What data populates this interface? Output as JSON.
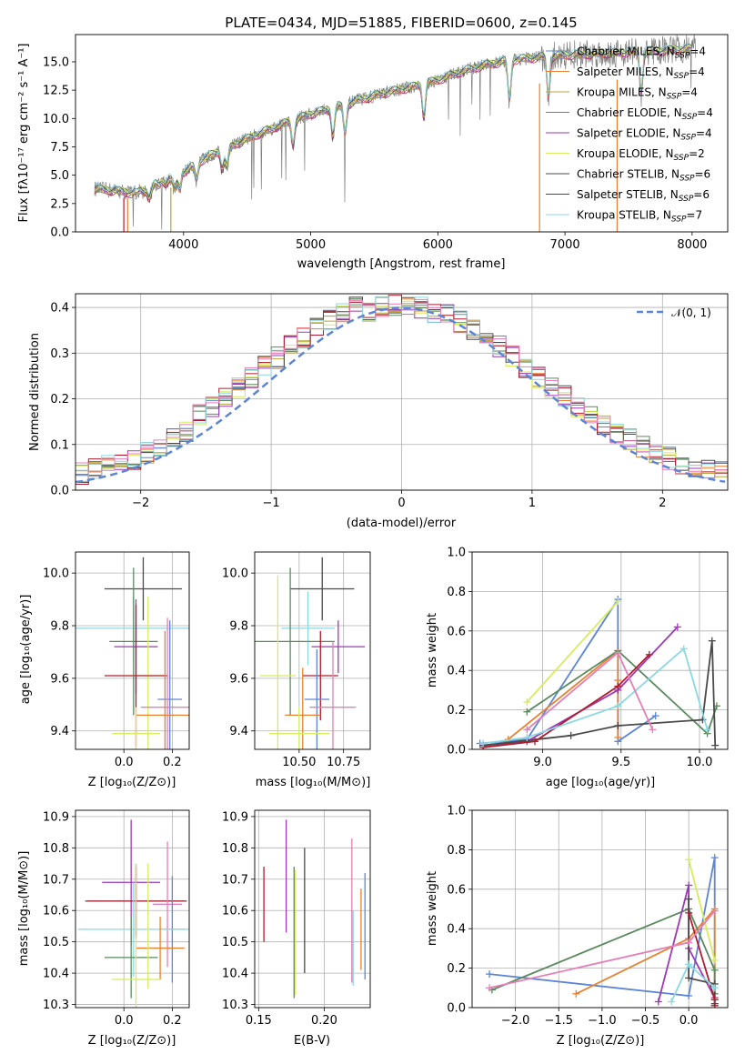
{
  "figure": {
    "colors": {
      "chabrier_miles": "#5d85d6",
      "salpeter_miles": "#e8812f",
      "kroupa_miles": "#b8a43a",
      "chabrier_elodie": "#5a8a5e",
      "salpeter_elodie": "#9e38b6",
      "kroupa_elodie": "#d6ec5c",
      "chabrier_stelib": "#4a4a4a",
      "salpeter_stelib": "#b01c2e",
      "kroupa_stelib": "#8bd9e0",
      "pink": "#e57fb6"
    }
  },
  "chart_data": [
    {
      "id": "spectrum",
      "type": "line",
      "title": "PLATE=0434, MJD=51885, FIBERID=0600, z=0.145",
      "xlabel": "wavelength [Angstrom, rest frame]",
      "ylabel": "Flux [fλ10⁻¹⁷ erg cm⁻² s⁻¹ A⁻¹]",
      "xlim": [
        3150,
        8280
      ],
      "ylim": [
        0,
        17.4
      ],
      "xticks": [
        4000,
        5000,
        6000,
        7000,
        8000
      ],
      "yticks": [
        0.0,
        2.5,
        5.0,
        7.5,
        10.0,
        12.5,
        15.0
      ],
      "grid": false,
      "legend_position": "top-right",
      "legend": [
        {
          "label": "Chabrier MILES, N",
          "sub": "SSP",
          "tail": "=4",
          "color": "#5d85d6"
        },
        {
          "label": "Salpeter MILES, N",
          "sub": "SSP",
          "tail": "=4",
          "color": "#e8812f"
        },
        {
          "label": "Kroupa MILES, N",
          "sub": "SSP",
          "tail": "=4",
          "color": "#b8a43a"
        },
        {
          "label": "Chabrier ELODIE, N",
          "sub": "SSP",
          "tail": "=4",
          "color": "#5a8a5e"
        },
        {
          "label": "Salpeter ELODIE, N",
          "sub": "SSP",
          "tail": "=4",
          "color": "#9e38b6"
        },
        {
          "label": "Kroupa ELODIE, N",
          "sub": "SSP",
          "tail": "=2",
          "color": "#d6ec5c"
        },
        {
          "label": "Chabrier STELIB, N",
          "sub": "SSP",
          "tail": "=6",
          "color": "#4a4a4a"
        },
        {
          "label": "Salpeter STELIB, N",
          "sub": "SSP",
          "tail": "=6",
          "color": "#b01c2e"
        },
        {
          "label": "Kroupa STELIB, N",
          "sub": "SSP",
          "tail": "=7",
          "color": "#8bd9e0"
        }
      ],
      "continuum": {
        "x": [
          3300,
          3400,
          3500,
          3600,
          3700,
          3800,
          3900,
          4000,
          4100,
          4200,
          4400,
          4600,
          4800,
          5000,
          5200,
          5400,
          5600,
          5800,
          6000,
          6200,
          6400,
          6600,
          6800,
          7000,
          7200,
          7400,
          7600,
          7800,
          8000
        ],
        "y": [
          3.8,
          3.7,
          3.6,
          3.4,
          3.7,
          4.2,
          4.6,
          5.3,
          6.0,
          6.7,
          7.7,
          8.7,
          9.6,
          10.4,
          11.0,
          11.7,
          12.3,
          12.8,
          13.4,
          14.2,
          14.8,
          15.2,
          15.4,
          15.6,
          15.7,
          15.8,
          15.9,
          16.0,
          16.2
        ]
      },
      "model_drop_x": [
        3530,
        3560,
        3900,
        6800,
        7410
      ]
    },
    {
      "id": "residuals",
      "type": "line",
      "xlabel": "(data-model)/error",
      "ylabel": "Normed distribution",
      "xlim": [
        -2.5,
        2.5
      ],
      "ylim": [
        0,
        0.43
      ],
      "xticks": [
        -2,
        -1,
        0,
        1,
        2
      ],
      "yticks": [
        0.0,
        0.1,
        0.2,
        0.3,
        0.4
      ],
      "grid": true,
      "legend_position": "top-right",
      "legend": [
        {
          "label": "𝒩(0, 1)",
          "color": "#5d85d6",
          "dashed": true
        }
      ],
      "gaussian": {
        "mu": 0,
        "sigma": 1
      },
      "histogram_bin_width": 0.1
    },
    {
      "id": "age-vs-z",
      "type": "scatter",
      "xlabel": "Z [log₁₀(Z/Z⊙)]",
      "ylabel": "age  [log₁₀(age/yr)]",
      "xlim": [
        -0.2,
        0.27
      ],
      "ylim": [
        9.33,
        10.08
      ],
      "xticks": [
        0.0,
        0.2
      ],
      "yticks": [
        9.4,
        9.6,
        9.8,
        10.0
      ],
      "grid": true,
      "points": [
        {
          "x": 0.08,
          "xerr": 0.16,
          "y": 9.94,
          "yerr": 0.12,
          "color": "#4a4a4a"
        },
        {
          "x": 0.04,
          "xerr": 0.28,
          "y": 9.79,
          "yerr": 0.12,
          "color": "#8bd9e0"
        },
        {
          "x": 0.04,
          "xerr": 0.1,
          "y": 9.74,
          "yerr": 0.28,
          "color": "#5a8a5e"
        },
        {
          "x": 0.05,
          "xerr": 0.09,
          "y": 9.72,
          "yerr": 0.18,
          "color": "#9e38b6"
        },
        {
          "x": 0.1,
          "xerr": 0.09,
          "y": 9.61,
          "yerr": 0.3,
          "color": "#d6ec5c"
        },
        {
          "x": 0.05,
          "xerr": 0.13,
          "y": 9.61,
          "yerr": 0.27,
          "color": "#b01c2e"
        },
        {
          "x": 0.19,
          "xerr": 0.05,
          "y": 9.52,
          "yerr": 0.3,
          "color": "#5d85d6"
        },
        {
          "x": 0.18,
          "xerr": 0.11,
          "y": 9.49,
          "yerr": 0.34,
          "color": "#e57fb6"
        },
        {
          "x": 0.17,
          "xerr": 0.12,
          "y": 9.46,
          "yerr": 0.32,
          "color": "#e8812f"
        },
        {
          "x": 0.05,
          "xerr": 0.1,
          "y": 9.39,
          "yerr": 0.1,
          "color": "#d6ec5c"
        }
      ]
    },
    {
      "id": "age-vs-mass",
      "type": "scatter",
      "xlabel": "mass [log₁₀(M/M⊙)]",
      "ylabel": "",
      "xlim": [
        10.25,
        10.9
      ],
      "ylim": [
        9.33,
        10.08
      ],
      "xticks": [
        10.5,
        10.75
      ],
      "yticks": [
        9.4,
        9.6,
        9.8,
        10.0
      ],
      "grid": true,
      "points": [
        {
          "x": 10.63,
          "xerr": 0.18,
          "y": 9.94,
          "yerr": 0.12,
          "color": "#4a4a4a"
        },
        {
          "x": 10.55,
          "xerr": 0.15,
          "y": 9.79,
          "yerr": 0.14,
          "color": "#8bd9e0"
        },
        {
          "x": 10.45,
          "xerr": 0.25,
          "y": 9.74,
          "yerr": 0.28,
          "color": "#5a8a5e"
        },
        {
          "x": 10.72,
          "xerr": 0.15,
          "y": 9.72,
          "yerr": 0.1,
          "color": "#9e38b6"
        },
        {
          "x": 10.38,
          "xerr": 0.1,
          "y": 9.61,
          "yerr": 0.38,
          "color": "#d6ec5c"
        },
        {
          "x": 10.62,
          "xerr": 0.1,
          "y": 9.61,
          "yerr": 0.17,
          "color": "#b01c2e"
        },
        {
          "x": 10.6,
          "xerr": 0.07,
          "y": 9.52,
          "yerr": 0.19,
          "color": "#5d85d6"
        },
        {
          "x": 10.69,
          "xerr": 0.13,
          "y": 9.49,
          "yerr": 0.25,
          "color": "#e57fb6"
        },
        {
          "x": 10.52,
          "xerr": 0.1,
          "y": 9.46,
          "yerr": 0.18,
          "color": "#e8812f"
        },
        {
          "x": 10.5,
          "xerr": 0.17,
          "y": 9.39,
          "yerr": 0.1,
          "color": "#d6ec5c"
        }
      ]
    },
    {
      "id": "weight-vs-age",
      "type": "line",
      "xlabel": "age  [log₁₀(age/yr)]",
      "ylabel": "mass weight",
      "xlim": [
        8.55,
        10.18
      ],
      "ylim": [
        0,
        1.0
      ],
      "xticks": [
        9.0,
        9.5,
        10.0
      ],
      "yticks": [
        0.0,
        0.2,
        0.4,
        0.6,
        0.8,
        1.0
      ],
      "grid": true,
      "series": [
        {
          "color": "#5d85d6",
          "x": [
            8.6,
            8.9,
            9.48,
            9.48,
            9.72
          ],
          "y": [
            0.03,
            0.05,
            0.76,
            0.04,
            0.17
          ]
        },
        {
          "color": "#e8812f",
          "x": [
            8.78,
            9.48,
            9.48,
            9.48
          ],
          "y": [
            0.05,
            0.5,
            0.35,
            0.06
          ]
        },
        {
          "color": "#5a8a5e",
          "x": [
            8.9,
            9.48,
            10.05,
            10.11
          ],
          "y": [
            0.19,
            0.5,
            0.08,
            0.22
          ]
        },
        {
          "color": "#9e38b6",
          "x": [
            8.62,
            8.9,
            9.48,
            9.86
          ],
          "y": [
            0.02,
            0.04,
            0.3,
            0.62
          ]
        },
        {
          "color": "#d6ec5c",
          "x": [
            8.9,
            9.48
          ],
          "y": [
            0.24,
            0.75
          ]
        },
        {
          "color": "#4a4a4a",
          "x": [
            8.62,
            9.18,
            9.48,
            10.02,
            10.08,
            10.1
          ],
          "y": [
            0.02,
            0.07,
            0.12,
            0.15,
            0.55,
            0.02
          ]
        },
        {
          "color": "#b01c2e",
          "x": [
            8.62,
            8.95,
            9.48,
            9.68
          ],
          "y": [
            0.01,
            0.04,
            0.32,
            0.48
          ]
        },
        {
          "color": "#8bd9e0",
          "x": [
            8.62,
            8.9,
            9.48,
            9.9,
            10.05
          ],
          "y": [
            0.03,
            0.06,
            0.22,
            0.51,
            0.1
          ]
        },
        {
          "color": "#e57fb6",
          "x": [
            8.9,
            9.48,
            9.7
          ],
          "y": [
            0.1,
            0.49,
            0.1
          ]
        }
      ]
    },
    {
      "id": "mass-vs-z",
      "type": "scatter",
      "xlabel": "Z [log₁₀(Z/Z⊙)]",
      "ylabel": "mass [log₁₀(M/M⊙)]",
      "xlim": [
        -0.2,
        0.27
      ],
      "ylim": [
        10.29,
        10.92
      ],
      "xticks": [
        0.0,
        0.2
      ],
      "yticks": [
        10.3,
        10.4,
        10.5,
        10.6,
        10.7,
        10.8,
        10.9
      ],
      "grid": true,
      "points": [
        {
          "x": 0.03,
          "xerr": 0.12,
          "y": 10.69,
          "yerr": 0.2,
          "color": "#9e38b6"
        },
        {
          "x": 0.05,
          "xerr": 0.21,
          "y": 10.63,
          "yerr": 0.12,
          "color": "#4a4a4a"
        },
        {
          "x": 0.05,
          "xerr": 0.2,
          "y": 10.63,
          "yerr": 0.11,
          "color": "#b01c2e"
        },
        {
          "x": 0.18,
          "xerr": 0.06,
          "y": 10.62,
          "yerr": 0.2,
          "color": "#e57fb6"
        },
        {
          "x": 0.2,
          "xerr": 0.05,
          "y": 10.54,
          "yerr": 0.17,
          "color": "#5d85d6"
        },
        {
          "x": 0.04,
          "xerr": 0.23,
          "y": 10.54,
          "yerr": 0.15,
          "color": "#8bd9e0"
        },
        {
          "x": 0.15,
          "xerr": 0.1,
          "y": 10.48,
          "yerr": 0.1,
          "color": "#e8812f"
        },
        {
          "x": 0.03,
          "xerr": 0.11,
          "y": 10.45,
          "yerr": 0.13,
          "color": "#5a8a5e"
        },
        {
          "x": 0.05,
          "xerr": 0.1,
          "y": 10.38,
          "yerr": 0.37,
          "color": "#d6ec5c"
        },
        {
          "x": 0.1,
          "xerr": 0.0,
          "y": 10.55,
          "yerr": 0.2,
          "color": "#d6ec5c"
        }
      ]
    },
    {
      "id": "mass-vs-ebv",
      "type": "scatter",
      "xlabel": "E(B-V)",
      "ylabel": "",
      "xlim": [
        0.147,
        0.235
      ],
      "ylim": [
        10.29,
        10.92
      ],
      "xticks": [
        0.15,
        0.2
      ],
      "yticks": [
        10.3,
        10.4,
        10.5,
        10.6,
        10.7,
        10.8,
        10.9
      ],
      "grid": true,
      "points": [
        {
          "x": 0.154,
          "y": 10.62,
          "yerr": 0.12,
          "color": "#b01c2e"
        },
        {
          "x": 0.171,
          "y": 10.71,
          "yerr": 0.18,
          "color": "#9e38b6"
        },
        {
          "x": 0.177,
          "y": 10.53,
          "yerr": 0.21,
          "color": "#5a8a5e"
        },
        {
          "x": 0.178,
          "y": 10.53,
          "yerr": 0.2,
          "color": "#d6ec5c"
        },
        {
          "x": 0.185,
          "y": 10.6,
          "yerr": 0.2,
          "color": "#4a4a4a"
        },
        {
          "x": 0.221,
          "y": 10.6,
          "yerr": 0.23,
          "color": "#e57fb6"
        },
        {
          "x": 0.222,
          "y": 10.48,
          "yerr": 0.12,
          "color": "#8bd9e0"
        },
        {
          "x": 0.228,
          "y": 10.54,
          "yerr": 0.13,
          "color": "#e8812f"
        },
        {
          "x": 0.231,
          "y": 10.55,
          "yerr": 0.17,
          "color": "#5d85d6"
        }
      ]
    },
    {
      "id": "weight-vs-z",
      "type": "line",
      "xlabel": "Z [log₁₀(Z/Z⊙)]",
      "ylabel": "mass weight",
      "xlim": [
        -2.5,
        0.45
      ],
      "ylim": [
        0,
        1.0
      ],
      "xticks": [
        -2.0,
        -1.5,
        -1.0,
        -0.5,
        0.0
      ],
      "yticks": [
        0.0,
        0.2,
        0.4,
        0.6,
        0.8,
        1.0
      ],
      "grid": true,
      "series": [
        {
          "color": "#5d85d6",
          "x": [
            -2.3,
            0.0,
            0.3,
            0.3
          ],
          "y": [
            0.17,
            0.06,
            0.76,
            0.01
          ]
        },
        {
          "color": "#e8812f",
          "x": [
            -1.3,
            0.0,
            0.3,
            0.3
          ],
          "y": [
            0.07,
            0.35,
            0.5,
            0.04
          ]
        },
        {
          "color": "#5a8a5e",
          "x": [
            -2.27,
            0.0,
            0.3,
            0.3
          ],
          "y": [
            0.09,
            0.5,
            0.19,
            0.07
          ]
        },
        {
          "color": "#9e38b6",
          "x": [
            -0.35,
            0.0,
            0.0,
            0.3
          ],
          "y": [
            0.03,
            0.62,
            0.3,
            0.05
          ]
        },
        {
          "color": "#d6ec5c",
          "x": [
            0.0,
            0.3
          ],
          "y": [
            0.75,
            0.24
          ]
        },
        {
          "color": "#4a4a4a",
          "x": [
            0.0,
            0.0,
            0.3,
            0.3
          ],
          "y": [
            0.55,
            0.15,
            0.12,
            0.02
          ]
        },
        {
          "color": "#b01c2e",
          "x": [
            0.0,
            0.3,
            0.3
          ],
          "y": [
            0.48,
            0.04,
            0.01
          ]
        },
        {
          "color": "#8bd9e0",
          "x": [
            -0.2,
            0.0,
            0.3
          ],
          "y": [
            0.03,
            0.22,
            0.1
          ]
        },
        {
          "color": "#e57fb6",
          "x": [
            -2.3,
            0.0,
            0.3
          ],
          "y": [
            0.1,
            0.33,
            0.49
          ]
        }
      ]
    }
  ]
}
